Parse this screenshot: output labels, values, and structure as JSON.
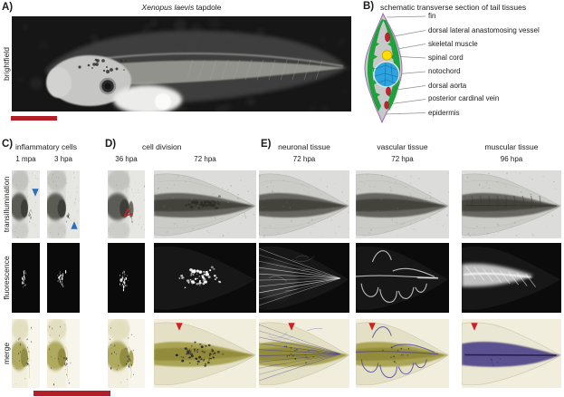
{
  "colors": {
    "scale_bar": "#b21f28",
    "arrow_blue": "#2e6fba",
    "arrow_red": "#cd2027",
    "muscle_green": "#1fa13d",
    "notochord_blue": "#2fa3de",
    "spinal_cord_yellow": "#ffdf00",
    "vessel_red": "#c32031",
    "stain_purple": "#4f43a0",
    "merge_olive": "#a49e48"
  },
  "panel_a": {
    "tag": "A)",
    "title_species": "Xenopus laevis",
    "title_rest": " tapdole",
    "row_label": "brightfield"
  },
  "panel_b": {
    "tag": "B)",
    "title": "schematic transverse section of tail tissues",
    "labels": [
      "fin",
      "dorsal lateral anastomosing vessel",
      "skeletal muscle",
      "spinal cord",
      "notochord",
      "dorsal aorta",
      "posterior cardinal vein",
      "epidermis"
    ]
  },
  "panel_c": {
    "tag": "C)",
    "title": "inflammatory cells",
    "columns": [
      "1 mpa",
      "3 hpa"
    ]
  },
  "panel_d": {
    "tag": "D)",
    "title": "cell division",
    "columns": [
      "36 hpa",
      "72 hpa"
    ]
  },
  "panel_e": {
    "tag": "E)",
    "columns": [
      {
        "tissue": "neuronal tissue",
        "time": "72 hpa"
      },
      {
        "tissue": "vascular tissue",
        "time": "72 hpa"
      },
      {
        "tissue": "muscular tissue",
        "time": "96 hpa"
      }
    ]
  },
  "row_labels": [
    "transillumination",
    "fluorescence",
    "merge"
  ],
  "annotations": [
    {
      "panel": "C",
      "column": "1 mpa",
      "row": "transillumination",
      "marker": "blue-arrowhead-down"
    },
    {
      "panel": "C",
      "column": "3 hpa",
      "row": "transillumination",
      "marker": "blue-arrowhead-up"
    },
    {
      "panel": "D",
      "column": "36 hpa",
      "row": "transillumination",
      "marker": "red-open-arrowhead"
    },
    {
      "panel": "D",
      "column": "72 hpa",
      "row": "merge",
      "marker": "red-arrowhead-down"
    },
    {
      "panel": "E",
      "column": "neuronal tissue",
      "row": "merge",
      "marker": "red-arrowhead-down"
    },
    {
      "panel": "E",
      "column": "vascular tissue",
      "row": "merge",
      "marker": "red-arrowhead-down"
    },
    {
      "panel": "E",
      "column": "muscular tissue",
      "row": "merge",
      "marker": "red-arrowhead-down"
    }
  ]
}
